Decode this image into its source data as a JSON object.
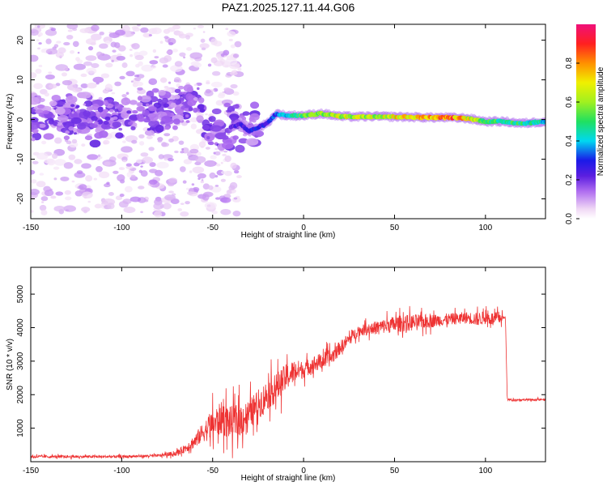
{
  "title": "PAZ1.2025.127.11.44.G06",
  "colors": {
    "snr_line": "#ee3333",
    "ridge_blue": "#5b1ee0",
    "scatter_light": "#d9c7f5",
    "frame": "#000000"
  },
  "chart_data": [
    {
      "type": "heatmap",
      "name": "spectrogram",
      "xlabel": "Height of straight line (km)",
      "ylabel": "Frequency (Hz)",
      "xlim": [
        -150,
        133
      ],
      "ylim": [
        -25,
        24
      ],
      "xticks": [
        -150,
        -100,
        -50,
        0,
        50,
        100
      ],
      "xtick_labels": [
        "-150",
        "-100",
        "-50",
        "0",
        "50",
        "100"
      ],
      "yticks": [
        -20,
        -10,
        0,
        10,
        20
      ],
      "ytick_labels": [
        "-20",
        "-10",
        "0",
        "10",
        "20"
      ],
      "grid": false,
      "colorbar": {
        "label": "Normalized spectral amplitude",
        "range": [
          0,
          1
        ],
        "ticks": [
          0.0,
          0.2,
          0.4,
          0.6,
          0.8
        ],
        "tick_labels": [
          "0.0",
          "0.2",
          "0.4",
          "0.6",
          "0.8"
        ],
        "colormap": [
          "#ffffff",
          "#f0d8f5",
          "#b06ef0",
          "#5b1ee0",
          "#1a1ae8",
          "#00d8f0",
          "#20e060",
          "#a0f020",
          "#f0f000",
          "#ff9000",
          "#ff2020",
          "#f0107a"
        ]
      },
      "ridge": {
        "x": [
          -150,
          -130,
          -110,
          -90,
          -75,
          -65,
          -60,
          -55,
          -50,
          -45,
          -40,
          -35,
          -30,
          -25,
          -20,
          -15,
          -10,
          0,
          10,
          20,
          30,
          40,
          50,
          60,
          70,
          80,
          90,
          100,
          110,
          120,
          133
        ],
        "frequency_hz": [
          0.5,
          1.0,
          0.0,
          1.0,
          2.0,
          4.0,
          5.0,
          0.0,
          -2.0,
          -3.0,
          -2.0,
          -1.0,
          -3.0,
          -2.0,
          -1.0,
          1.5,
          1.0,
          1.0,
          1.5,
          0.8,
          0.7,
          0.8,
          0.7,
          0.6,
          0.5,
          0.5,
          0.3,
          -0.5,
          -0.5,
          -1.0,
          -0.5
        ],
        "amplitude": [
          0.25,
          0.25,
          0.25,
          0.25,
          0.25,
          0.3,
          0.3,
          0.3,
          0.3,
          0.3,
          0.3,
          0.3,
          0.35,
          0.35,
          0.35,
          0.4,
          0.45,
          0.6,
          0.65,
          0.7,
          0.7,
          0.7,
          0.75,
          0.8,
          0.85,
          0.9,
          0.75,
          0.6,
          0.55,
          0.55,
          0.5
        ]
      }
    },
    {
      "type": "line",
      "name": "snr",
      "xlabel": "Height of straight line (km)",
      "ylabel": "SNR (10 * v/v)",
      "xlim": [
        -150,
        133
      ],
      "ylim": [
        0,
        5800
      ],
      "xticks": [
        -150,
        -100,
        -50,
        0,
        50,
        100
      ],
      "xtick_labels": [
        "-150",
        "-100",
        "-50",
        "0",
        "50",
        "100"
      ],
      "yticks": [
        1000,
        2000,
        3000,
        4000,
        5000
      ],
      "ytick_labels": [
        "1000",
        "2000",
        "3000",
        "4000",
        "5000"
      ],
      "grid": false,
      "series": [
        {
          "x": [
            -150,
            -120,
            -100,
            -80,
            -70,
            -65,
            -60,
            -55,
            -50,
            -45,
            -40,
            -35,
            -30,
            -25,
            -20,
            -15,
            -10,
            -5,
            0,
            5,
            10,
            15,
            20,
            25,
            30,
            40,
            50,
            60,
            70,
            80,
            90,
            95,
            100,
            105,
            108,
            110,
            111,
            112,
            120,
            133
          ],
          "y": [
            150,
            150,
            150,
            180,
            250,
            400,
            600,
            900,
            1100,
            1300,
            1150,
            1250,
            1400,
            1700,
            2000,
            2200,
            2500,
            2700,
            2750,
            2900,
            3000,
            3100,
            3400,
            3650,
            3900,
            4000,
            4100,
            4150,
            4200,
            4250,
            4300,
            4250,
            4300,
            4250,
            4300,
            4300,
            4250,
            1850,
            1850,
            1850
          ],
          "noise_amplitude": [
            80,
            80,
            80,
            80,
            150,
            250,
            400,
            600,
            900,
            1000,
            1000,
            1000,
            900,
            900,
            900,
            900,
            800,
            700,
            500,
            500,
            500,
            500,
            400,
            400,
            300,
            400,
            500,
            500,
            400,
            350,
            350,
            400,
            400,
            400,
            400,
            100,
            100,
            60,
            60,
            60
          ]
        }
      ]
    }
  ]
}
